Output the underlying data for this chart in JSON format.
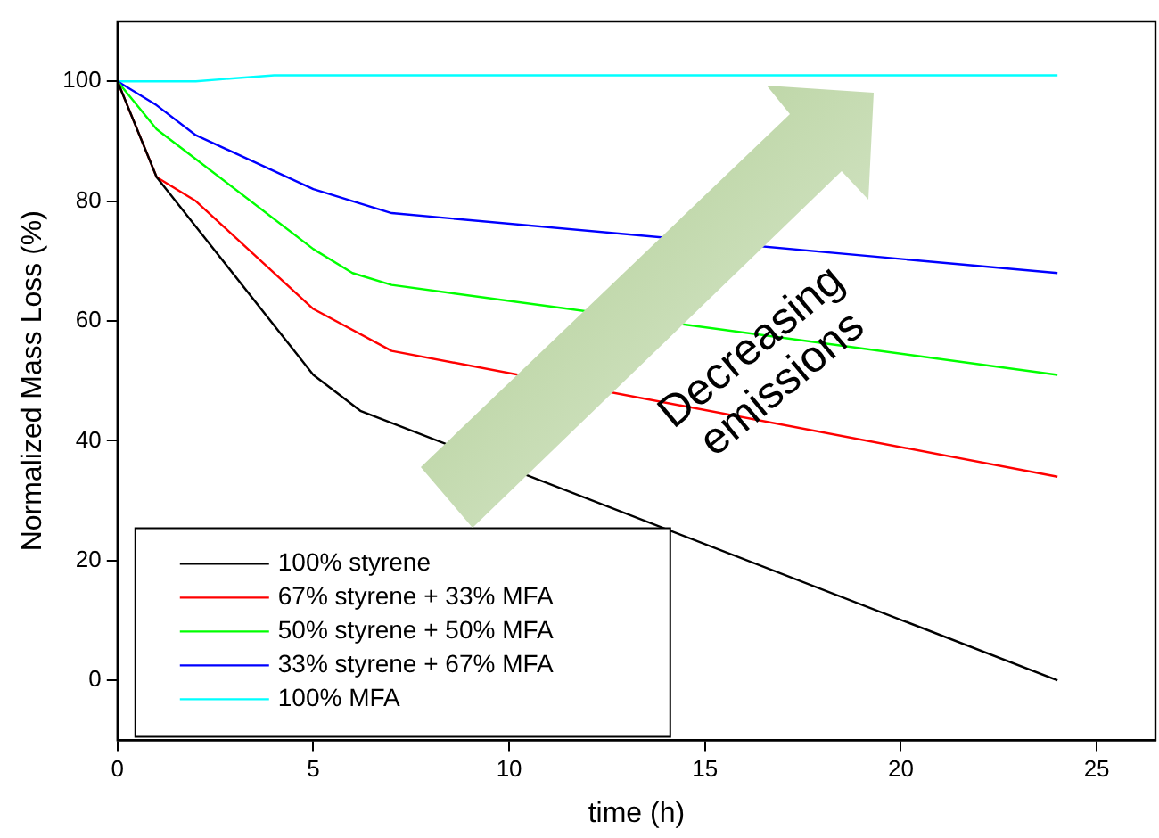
{
  "chart_data": {
    "type": "line",
    "xlabel": "time (h)",
    "ylabel": "Normalized Mass Loss (%)",
    "xlim": [
      0,
      26.5
    ],
    "xticks": [
      0,
      5,
      10,
      15,
      20,
      25
    ],
    "ylim": [
      -10,
      110
    ],
    "yticks": [
      0,
      20,
      40,
      60,
      80,
      100
    ],
    "grid": false,
    "legend": "bottom left",
    "marker": "none",
    "line_style": "solid",
    "annotations": [
      "Decreasing emissions"
    ],
    "series": [
      {
        "name": "100% styrene",
        "color": "#000000",
        "x": [
          0,
          1,
          5,
          6.2,
          24
        ],
        "values": [
          100,
          84,
          51,
          45,
          0
        ]
      },
      {
        "name": "67% styrene + 33% MFA",
        "color": "#ff0000",
        "x": [
          0,
          1,
          2,
          5,
          7,
          24
        ],
        "values": [
          100,
          84,
          80,
          62,
          55,
          34
        ]
      },
      {
        "name": "50% styrene + 50% MFA",
        "color": "#00ff00",
        "x": [
          0,
          1,
          2,
          5,
          6,
          7,
          24
        ],
        "values": [
          100,
          92,
          87,
          72,
          68,
          66,
          51
        ]
      },
      {
        "name": "33% styrene + 67% MFA",
        "color": "#0000ff",
        "x": [
          0,
          1,
          2,
          5,
          7,
          24
        ],
        "values": [
          100,
          96,
          91,
          82,
          78,
          68
        ]
      },
      {
        "name": "100% MFA",
        "color": "#00ffff",
        "x": [
          0,
          2,
          4,
          24
        ],
        "values": [
          100,
          100,
          101,
          101
        ]
      }
    ]
  }
}
